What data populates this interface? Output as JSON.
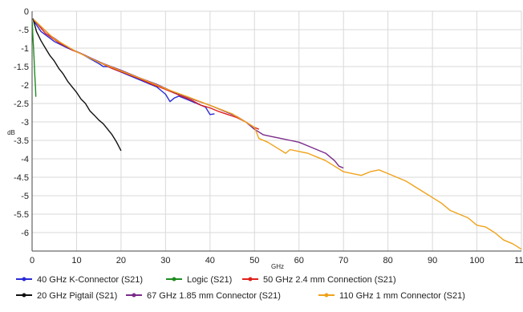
{
  "chart_data": {
    "type": "line",
    "xlabel": "GHz",
    "ylabel": "dB",
    "xlim": [
      0,
      110
    ],
    "ylim": [
      -6.5,
      0
    ],
    "x_ticks": [
      0,
      10,
      20,
      30,
      40,
      50,
      60,
      70,
      80,
      90,
      100,
      110
    ],
    "y_ticks": [
      0,
      -0.5,
      -1,
      -1.5,
      -2,
      -2.5,
      -3,
      -3.5,
      -4,
      -4.5,
      -5,
      -5.5,
      -6
    ],
    "y_tick_labels": [
      "0",
      "-.5",
      "-1",
      "-1.5",
      "-2",
      "-2.5",
      "-3",
      "-3.5",
      "-4",
      "-4.5",
      "-5",
      "-5.5",
      "-6"
    ],
    "x_tick_labels": [
      "0",
      "10",
      "20",
      "30",
      "40",
      "50",
      "60",
      "70",
      "80",
      "90",
      "100",
      "110"
    ],
    "grid": true,
    "legend_position": "bottom",
    "series": [
      {
        "name": "40 GHz K-Connector (S21)",
        "color": "#2a2ad6",
        "points": [
          [
            0.3,
            -0.25
          ],
          [
            2,
            -0.55
          ],
          [
            5,
            -0.82
          ],
          [
            8,
            -1.0
          ],
          [
            11,
            -1.15
          ],
          [
            14,
            -1.35
          ],
          [
            15,
            -1.42
          ],
          [
            16,
            -1.5
          ],
          [
            17,
            -1.5
          ],
          [
            18,
            -1.55
          ],
          [
            20,
            -1.65
          ],
          [
            22,
            -1.75
          ],
          [
            24,
            -1.85
          ],
          [
            26,
            -1.95
          ],
          [
            28,
            -2.05
          ],
          [
            29,
            -2.15
          ],
          [
            30,
            -2.25
          ],
          [
            31,
            -2.45
          ],
          [
            32,
            -2.35
          ],
          [
            33,
            -2.3
          ],
          [
            35,
            -2.4
          ],
          [
            37,
            -2.5
          ],
          [
            39,
            -2.6
          ],
          [
            40,
            -2.8
          ],
          [
            41,
            -2.78
          ]
        ]
      },
      {
        "name": "Logic (S21)",
        "color": "#1f8c1f",
        "points": [
          [
            0.05,
            -0.3
          ],
          [
            0.15,
            -0.6
          ],
          [
            0.3,
            -0.95
          ],
          [
            0.45,
            -1.3
          ],
          [
            0.6,
            -1.7
          ],
          [
            0.75,
            -2.05
          ],
          [
            0.85,
            -2.32
          ]
        ]
      },
      {
        "name": "50 GHz 2.4 mm Connection (S21)",
        "color": "#e0201c",
        "points": [
          [
            0.3,
            -0.22
          ],
          [
            3,
            -0.6
          ],
          [
            6,
            -0.85
          ],
          [
            9,
            -1.05
          ],
          [
            12,
            -1.2
          ],
          [
            15,
            -1.38
          ],
          [
            18,
            -1.55
          ],
          [
            21,
            -1.68
          ],
          [
            24,
            -1.82
          ],
          [
            27,
            -1.98
          ],
          [
            30,
            -2.12
          ],
          [
            32,
            -2.22
          ],
          [
            34,
            -2.32
          ],
          [
            36,
            -2.42
          ],
          [
            38,
            -2.55
          ],
          [
            40,
            -2.62
          ],
          [
            42,
            -2.72
          ],
          [
            44,
            -2.8
          ],
          [
            46,
            -2.88
          ],
          [
            48,
            -3.0
          ],
          [
            50,
            -3.15
          ],
          [
            51,
            -3.2
          ]
        ]
      },
      {
        "name": "20 GHz Pigtail (S21)",
        "color": "#111111",
        "points": [
          [
            0.2,
            -0.2
          ],
          [
            1,
            -0.55
          ],
          [
            2,
            -0.8
          ],
          [
            3,
            -1.0
          ],
          [
            4,
            -1.2
          ],
          [
            5,
            -1.35
          ],
          [
            6,
            -1.55
          ],
          [
            7,
            -1.7
          ],
          [
            8,
            -1.9
          ],
          [
            9,
            -2.05
          ],
          [
            10,
            -2.2
          ],
          [
            11,
            -2.38
          ],
          [
            12,
            -2.5
          ],
          [
            13,
            -2.7
          ],
          [
            14,
            -2.82
          ],
          [
            15,
            -2.95
          ],
          [
            16,
            -3.05
          ],
          [
            17,
            -3.2
          ],
          [
            18,
            -3.35
          ],
          [
            19,
            -3.55
          ],
          [
            20,
            -3.78
          ]
        ]
      },
      {
        "name": "67 GHz 1.85 mm Connector (S21)",
        "color": "#7b2a8a",
        "points": [
          [
            0.3,
            -0.22
          ],
          [
            4,
            -0.65
          ],
          [
            8,
            -0.98
          ],
          [
            12,
            -1.2
          ],
          [
            16,
            -1.42
          ],
          [
            20,
            -1.6
          ],
          [
            24,
            -1.8
          ],
          [
            28,
            -1.98
          ],
          [
            32,
            -2.2
          ],
          [
            36,
            -2.38
          ],
          [
            40,
            -2.55
          ],
          [
            42,
            -2.65
          ],
          [
            44,
            -2.75
          ],
          [
            46,
            -2.85
          ],
          [
            48,
            -3.0
          ],
          [
            50,
            -3.2
          ],
          [
            52,
            -3.35
          ],
          [
            54,
            -3.4
          ],
          [
            56,
            -3.45
          ],
          [
            58,
            -3.5
          ],
          [
            60,
            -3.55
          ],
          [
            62,
            -3.65
          ],
          [
            64,
            -3.75
          ],
          [
            66,
            -3.85
          ],
          [
            68,
            -4.05
          ],
          [
            69,
            -4.2
          ],
          [
            70,
            -4.25
          ]
        ]
      },
      {
        "name": "110 GHz 1 mm Connector (S21)",
        "color": "#f0a21a",
        "points": [
          [
            0.3,
            -0.22
          ],
          [
            5,
            -0.75
          ],
          [
            10,
            -1.1
          ],
          [
            15,
            -1.38
          ],
          [
            20,
            -1.62
          ],
          [
            25,
            -1.85
          ],
          [
            30,
            -2.1
          ],
          [
            35,
            -2.32
          ],
          [
            40,
            -2.55
          ],
          [
            45,
            -2.78
          ],
          [
            50,
            -3.15
          ],
          [
            51,
            -3.45
          ],
          [
            53,
            -3.55
          ],
          [
            55,
            -3.7
          ],
          [
            57,
            -3.85
          ],
          [
            58,
            -3.75
          ],
          [
            60,
            -3.8
          ],
          [
            62,
            -3.85
          ],
          [
            64,
            -3.95
          ],
          [
            66,
            -4.05
          ],
          [
            68,
            -4.2
          ],
          [
            70,
            -4.35
          ],
          [
            72,
            -4.4
          ],
          [
            74,
            -4.45
          ],
          [
            76,
            -4.35
          ],
          [
            78,
            -4.3
          ],
          [
            80,
            -4.4
          ],
          [
            82,
            -4.5
          ],
          [
            84,
            -4.6
          ],
          [
            86,
            -4.75
          ],
          [
            88,
            -4.9
          ],
          [
            90,
            -5.05
          ],
          [
            92,
            -5.2
          ],
          [
            94,
            -5.4
          ],
          [
            96,
            -5.5
          ],
          [
            98,
            -5.6
          ],
          [
            100,
            -5.8
          ],
          [
            102,
            -5.85
          ],
          [
            104,
            -6.0
          ],
          [
            106,
            -6.2
          ],
          [
            108,
            -6.3
          ],
          [
            110,
            -6.45
          ]
        ]
      }
    ]
  }
}
